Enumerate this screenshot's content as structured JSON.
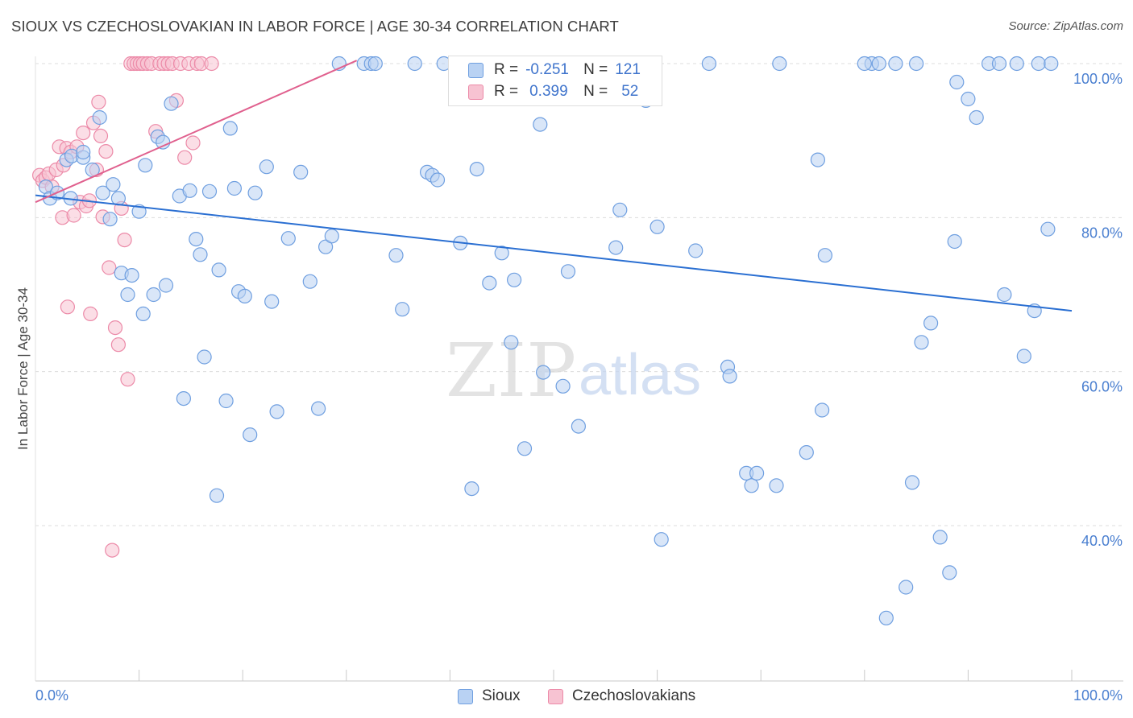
{
  "header": {
    "title": "SIOUX VS CZECHOSLOVAKIAN IN LABOR FORCE | AGE 30-34 CORRELATION CHART",
    "source": "Source: ZipAtlas.com"
  },
  "watermark": {
    "zip": "ZIP",
    "atlas": "atlas"
  },
  "legend": {
    "r_label": "R =",
    "n_label": "N =",
    "sioux": {
      "r": "-0.251",
      "n": "121"
    },
    "czech": {
      "r": "0.399",
      "n": "52"
    }
  },
  "colors": {
    "sioux_fill": "#b9d2f3",
    "sioux_stroke": "#6f9fe0",
    "sioux_line": "#2a6fd2",
    "czech_fill": "#f7c3d2",
    "czech_stroke": "#ec8aa8",
    "czech_line": "#e0608e",
    "tick_text": "#4a7fd0",
    "grid": "#dcdcdc"
  },
  "chart_data": {
    "type": "scatter",
    "title": "SIOUX VS CZECHOSLOVAKIAN IN LABOR FORCE | AGE 30-34 CORRELATION CHART",
    "xlabel": "",
    "ylabel": "In Labor Force | Age 30-34",
    "xlim": [
      0,
      100
    ],
    "ylim": [
      20,
      102
    ],
    "x_tick_labels": [
      "0.0%",
      "100.0%"
    ],
    "y_ticks": [
      {
        "value": 100,
        "label": "100.0%"
      },
      {
        "value": 80,
        "label": "80.0%"
      },
      {
        "value": 60,
        "label": "60.0%"
      },
      {
        "value": 40,
        "label": "40.0%"
      }
    ],
    "legend_entries": [
      "Sioux",
      "Czechoslovakians"
    ],
    "series": [
      {
        "name": "Sioux",
        "key": "sioux",
        "trend": {
          "x0": 0,
          "y0": 82.9,
          "x1": 100,
          "y1": 67.9
        },
        "points": [
          [
            1.0,
            84.0
          ],
          [
            1.4,
            82.5
          ],
          [
            2.1,
            83.2
          ],
          [
            3.0,
            87.5
          ],
          [
            3.5,
            88.0
          ],
          [
            3.4,
            82.5
          ],
          [
            4.6,
            87.8
          ],
          [
            4.6,
            88.5
          ],
          [
            5.5,
            86.2
          ],
          [
            6.2,
            93.0
          ],
          [
            6.5,
            83.2
          ],
          [
            7.2,
            79.8
          ],
          [
            7.5,
            84.3
          ],
          [
            8.0,
            82.5
          ],
          [
            8.3,
            72.8
          ],
          [
            8.9,
            70.0
          ],
          [
            9.3,
            72.5
          ],
          [
            10.0,
            80.8
          ],
          [
            10.4,
            67.5
          ],
          [
            10.6,
            86.8
          ],
          [
            11.4,
            70.0
          ],
          [
            11.8,
            90.5
          ],
          [
            12.3,
            89.8
          ],
          [
            12.6,
            71.2
          ],
          [
            13.1,
            94.8
          ],
          [
            13.9,
            82.8
          ],
          [
            14.3,
            56.5
          ],
          [
            14.9,
            83.5
          ],
          [
            15.5,
            77.2
          ],
          [
            15.9,
            75.2
          ],
          [
            16.3,
            61.9
          ],
          [
            16.8,
            83.4
          ],
          [
            17.5,
            43.9
          ],
          [
            17.7,
            73.2
          ],
          [
            18.4,
            56.2
          ],
          [
            18.8,
            91.6
          ],
          [
            19.2,
            83.8
          ],
          [
            19.6,
            70.4
          ],
          [
            20.2,
            69.8
          ],
          [
            20.7,
            51.8
          ],
          [
            21.2,
            83.2
          ],
          [
            22.3,
            86.6
          ],
          [
            22.8,
            69.1
          ],
          [
            23.3,
            54.8
          ],
          [
            24.4,
            77.3
          ],
          [
            25.6,
            85.9
          ],
          [
            26.5,
            71.7
          ],
          [
            27.3,
            55.2
          ],
          [
            28.0,
            76.2
          ],
          [
            28.6,
            77.6
          ],
          [
            29.3,
            100.0
          ],
          [
            31.7,
            100.0
          ],
          [
            32.4,
            100.0
          ],
          [
            32.8,
            100.0
          ],
          [
            34.8,
            75.1
          ],
          [
            35.4,
            68.1
          ],
          [
            36.6,
            100.0
          ],
          [
            37.8,
            85.9
          ],
          [
            38.3,
            85.5
          ],
          [
            38.8,
            84.9
          ],
          [
            39.4,
            100.0
          ],
          [
            41.0,
            76.7
          ],
          [
            42.1,
            44.8
          ],
          [
            42.6,
            86.3
          ],
          [
            43.8,
            71.5
          ],
          [
            45.0,
            75.4
          ],
          [
            45.9,
            63.8
          ],
          [
            46.2,
            71.9
          ],
          [
            47.2,
            50.0
          ],
          [
            48.1,
            100.0
          ],
          [
            48.7,
            92.1
          ],
          [
            49.0,
            59.9
          ],
          [
            50.2,
            100.0
          ],
          [
            50.9,
            58.1
          ],
          [
            51.4,
            73.0
          ],
          [
            52.4,
            52.9
          ],
          [
            55.3,
            100.0
          ],
          [
            56.0,
            76.1
          ],
          [
            56.4,
            81.0
          ],
          [
            58.3,
            100.0
          ],
          [
            58.9,
            95.2
          ],
          [
            60.0,
            78.8
          ],
          [
            60.4,
            38.2
          ],
          [
            63.7,
            75.7
          ],
          [
            65.0,
            100.0
          ],
          [
            66.8,
            60.6
          ],
          [
            67.0,
            59.4
          ],
          [
            68.6,
            46.8
          ],
          [
            69.1,
            45.2
          ],
          [
            69.6,
            46.8
          ],
          [
            71.5,
            45.2
          ],
          [
            71.8,
            100.0
          ],
          [
            74.4,
            49.5
          ],
          [
            75.5,
            87.5
          ],
          [
            75.9,
            55.0
          ],
          [
            76.2,
            75.1
          ],
          [
            80.7,
            100.0
          ],
          [
            81.4,
            100.0
          ],
          [
            82.1,
            28.0
          ],
          [
            83.0,
            100.0
          ],
          [
            84.0,
            32.0
          ],
          [
            84.6,
            45.6
          ],
          [
            85.5,
            63.8
          ],
          [
            86.4,
            66.3
          ],
          [
            87.3,
            38.5
          ],
          [
            88.2,
            33.9
          ],
          [
            88.7,
            76.9
          ],
          [
            88.9,
            97.6
          ],
          [
            90.0,
            95.4
          ],
          [
            90.8,
            93.0
          ],
          [
            92.0,
            100.0
          ],
          [
            93.5,
            70.0
          ],
          [
            94.7,
            100.0
          ],
          [
            95.4,
            62.0
          ],
          [
            96.4,
            67.9
          ],
          [
            96.8,
            100.0
          ],
          [
            97.7,
            78.5
          ],
          [
            98.0,
            100.0
          ],
          [
            80.0,
            100.0
          ],
          [
            85.0,
            100.0
          ],
          [
            93.0,
            100.0
          ]
        ]
      },
      {
        "name": "Czechoslovakians",
        "key": "czech",
        "trend": {
          "x0": 0,
          "y0": 82.0,
          "x1": 31,
          "y1": 100.4
        },
        "points": [
          [
            0.4,
            85.5
          ],
          [
            0.7,
            84.8
          ],
          [
            1.0,
            85.2
          ],
          [
            1.3,
            85.7
          ],
          [
            1.6,
            84.0
          ],
          [
            2.0,
            86.2
          ],
          [
            2.3,
            89.2
          ],
          [
            2.6,
            80.0
          ],
          [
            2.7,
            86.8
          ],
          [
            3.0,
            89.0
          ],
          [
            3.4,
            88.5
          ],
          [
            3.7,
            80.3
          ],
          [
            4.0,
            89.2
          ],
          [
            4.3,
            82.0
          ],
          [
            4.6,
            91.0
          ],
          [
            4.9,
            81.5
          ],
          [
            5.2,
            82.2
          ],
          [
            5.3,
            67.5
          ],
          [
            5.6,
            92.3
          ],
          [
            5.9,
            86.2
          ],
          [
            6.1,
            95.0
          ],
          [
            6.3,
            90.6
          ],
          [
            6.5,
            80.1
          ],
          [
            6.8,
            88.6
          ],
          [
            7.1,
            73.5
          ],
          [
            7.4,
            36.8
          ],
          [
            7.7,
            65.7
          ],
          [
            8.0,
            63.5
          ],
          [
            8.3,
            81.2
          ],
          [
            8.6,
            77.1
          ],
          [
            8.9,
            59.0
          ],
          [
            9.2,
            100.0
          ],
          [
            9.5,
            100.0
          ],
          [
            9.8,
            100.0
          ],
          [
            10.1,
            100.0
          ],
          [
            10.4,
            100.0
          ],
          [
            10.8,
            100.0
          ],
          [
            11.2,
            100.0
          ],
          [
            11.6,
            91.2
          ],
          [
            12.0,
            100.0
          ],
          [
            12.4,
            100.0
          ],
          [
            12.8,
            100.0
          ],
          [
            13.2,
            100.0
          ],
          [
            13.6,
            95.2
          ],
          [
            14.0,
            100.0
          ],
          [
            14.4,
            87.8
          ],
          [
            14.8,
            100.0
          ],
          [
            15.2,
            89.7
          ],
          [
            15.6,
            100.0
          ],
          [
            16.0,
            100.0
          ],
          [
            17.0,
            100.0
          ],
          [
            3.1,
            68.4
          ]
        ]
      }
    ]
  }
}
